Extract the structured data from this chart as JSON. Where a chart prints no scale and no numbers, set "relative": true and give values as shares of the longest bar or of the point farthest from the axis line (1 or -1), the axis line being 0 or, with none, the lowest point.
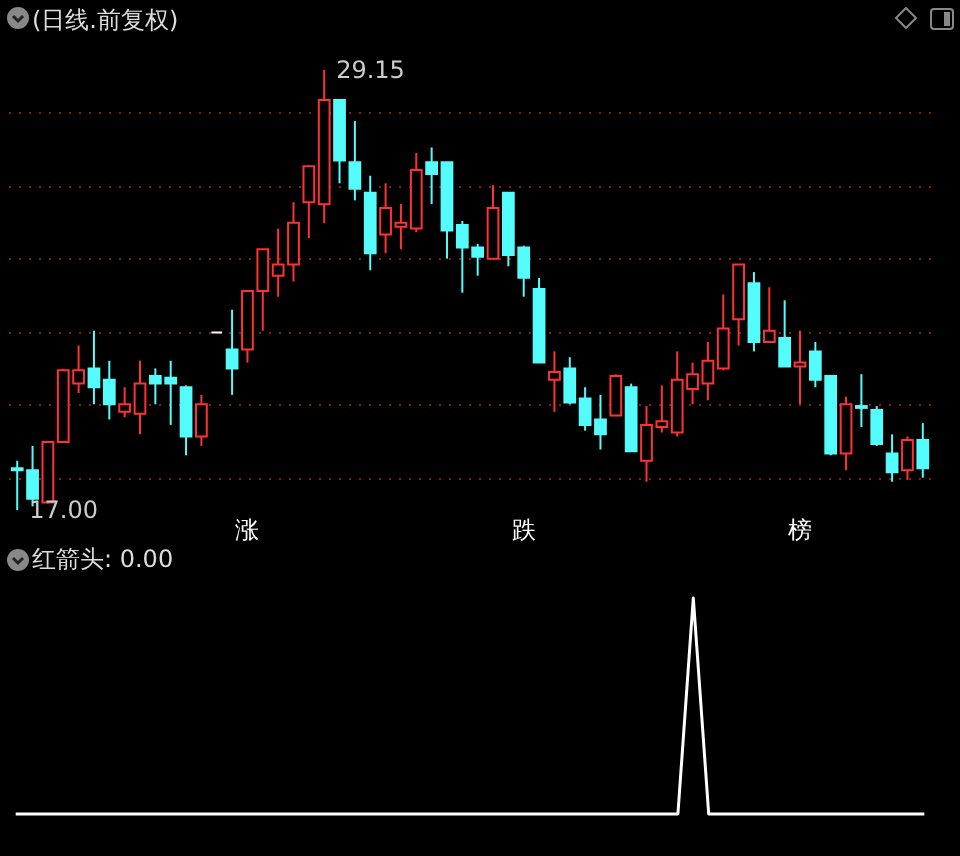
{
  "chart_data": [
    {
      "type": "candlestick",
      "title": "(日线.前复权)",
      "categories": [
        null,
        null,
        null,
        null,
        null,
        null,
        null,
        null,
        null,
        null,
        null,
        null,
        null,
        null,
        null,
        null,
        null,
        null,
        null,
        null,
        null,
        null,
        null,
        null,
        null,
        null,
        null,
        null,
        null,
        null,
        null,
        null,
        null,
        null,
        null,
        null,
        null,
        null,
        null,
        null,
        null,
        null,
        null,
        null,
        null,
        null,
        null,
        null,
        null,
        null,
        null,
        null,
        null,
        null,
        null,
        null,
        null,
        null,
        null,
        null
      ],
      "ohlc": [
        [
          18.15,
          18.36,
          17.0,
          18.1
        ],
        [
          18.1,
          18.77,
          17.1,
          17.31
        ],
        [
          17.21,
          18.9,
          17.18,
          18.88
        ],
        [
          18.88,
          20.9,
          18.85,
          20.86
        ],
        [
          20.49,
          21.54,
          20.23,
          20.86
        ],
        [
          20.91,
          21.95,
          19.92,
          20.39
        ],
        [
          20.6,
          21.12,
          19.5,
          19.92
        ],
        [
          19.71,
          20.39,
          19.56,
          19.92
        ],
        [
          19.66,
          21.12,
          19.09,
          20.49
        ],
        [
          20.7,
          20.91,
          19.92,
          20.49
        ],
        [
          20.65,
          21.12,
          19.35,
          20.49
        ],
        [
          20.39,
          20.44,
          18.51,
          19.03
        ],
        [
          19.03,
          20.18,
          18.77,
          19.92
        ],
        [
          21.9,
          21.9,
          21.9,
          21.9
        ],
        [
          21.43,
          22.53,
          20.18,
          20.91
        ],
        [
          21.43,
          23.05,
          21.07,
          23.05
        ],
        [
          23.05,
          24.2,
          21.95,
          24.2
        ],
        [
          23.47,
          24.77,
          22.89,
          23.78
        ],
        [
          23.78,
          25.5,
          23.31,
          24.93
        ],
        [
          25.5,
          26.49,
          24.51,
          26.49
        ],
        [
          25.44,
          29.15,
          24.92,
          28.32
        ],
        [
          28.32,
          28.32,
          26.02,
          26.65
        ],
        [
          26.6,
          27.74,
          25.55,
          25.87
        ],
        [
          25.76,
          26.23,
          23.62,
          24.09
        ],
        [
          24.61,
          26.02,
          24.09,
          25.34
        ],
        [
          24.82,
          25.45,
          24.2,
          24.93
        ],
        [
          24.77,
          26.86,
          24.67,
          26.39
        ],
        [
          26.6,
          27.01,
          25.45,
          26.28
        ],
        [
          26.6,
          26.6,
          23.94,
          24.72
        ],
        [
          24.87,
          24.98,
          23.0,
          24.25
        ],
        [
          24.25,
          24.35,
          23.47,
          23.99
        ],
        [
          23.94,
          25.97,
          23.94,
          25.34
        ],
        [
          25.76,
          25.76,
          23.73,
          24.04
        ],
        [
          24.25,
          24.3,
          22.89,
          23.41
        ],
        [
          23.1,
          23.41,
          21.07,
          21.07
        ],
        [
          20.6,
          21.38,
          19.71,
          20.81
        ],
        [
          20.91,
          21.22,
          19.92,
          19.97
        ],
        [
          20.08,
          20.39,
          19.19,
          19.35
        ],
        [
          19.5,
          20.18,
          18.67,
          19.09
        ],
        [
          19.61,
          20.75,
          19.61,
          20.7
        ],
        [
          20.39,
          20.49,
          18.62,
          18.62
        ],
        [
          18.36,
          19.87,
          17.78,
          19.35
        ],
        [
          19.29,
          20.44,
          19.14,
          19.45
        ],
        [
          19.14,
          21.38,
          19.03,
          20.6
        ],
        [
          20.34,
          21.07,
          19.92,
          20.75
        ],
        [
          20.49,
          21.64,
          20.03,
          21.12
        ],
        [
          20.91,
          22.95,
          20.86,
          22.01
        ],
        [
          22.27,
          23.78,
          21.54,
          23.78
        ],
        [
          23.26,
          23.57,
          21.38,
          21.64
        ],
        [
          21.64,
          23.15,
          21.64,
          21.95
        ],
        [
          21.75,
          22.79,
          20.96,
          20.96
        ],
        [
          20.96,
          21.95,
          19.92,
          21.07
        ],
        [
          21.38,
          21.64,
          20.39,
          20.6
        ],
        [
          20.7,
          20.7,
          18.51,
          18.56
        ],
        [
          18.56,
          20.13,
          18.1,
          19.92
        ],
        [
          19.87,
          20.75,
          19.29,
          19.82
        ],
        [
          19.76,
          19.87,
          18.77,
          18.82
        ],
        [
          18.56,
          19.09,
          17.78,
          18.04
        ],
        [
          18.1,
          19.03,
          17.83,
          18.93
        ],
        [
          18.93,
          19.4,
          17.89,
          18.15
        ]
      ],
      "colors": [
        "#54fcfc",
        "#54fcfc",
        "#ff3232",
        "#ff3232",
        "#ff3232",
        "#54fcfc",
        "#54fcfc",
        "#ff3232",
        "#ff3232",
        "#54fcfc",
        "#54fcfc",
        "#54fcfc",
        "#ff3232",
        "#ffffff",
        "#54fcfc",
        "#ff3232",
        "#ff3232",
        "#ff3232",
        "#ff3232",
        "#ff3232",
        "#ff3232",
        "#54fcfc",
        "#54fcfc",
        "#54fcfc",
        "#ff3232",
        "#ff3232",
        "#ff3232",
        "#54fcfc",
        "#54fcfc",
        "#54fcfc",
        "#54fcfc",
        "#ff3232",
        "#54fcfc",
        "#54fcfc",
        "#54fcfc",
        "#ff3232",
        "#54fcfc",
        "#54fcfc",
        "#54fcfc",
        "#ff3232",
        "#54fcfc",
        "#ff3232",
        "#ff3232",
        "#ff3232",
        "#ff3232",
        "#ff3232",
        "#ff3232",
        "#ff3232",
        "#54fcfc",
        "#ff3232",
        "#54fcfc",
        "#ff3232",
        "#54fcfc",
        "#54fcfc",
        "#ff3232",
        "#54fcfc",
        "#54fcfc",
        "#54fcfc",
        "#ff3232",
        "#54fcfc"
      ],
      "yticks": [
        {
          "value": 17.89,
          "label": null
        },
        {
          "value": 19.92,
          "label": null
        },
        {
          "value": 21.9,
          "label": null
        },
        {
          "value": 23.94,
          "label": null
        },
        {
          "value": 25.97,
          "label": null
        },
        {
          "value": 28.0,
          "label": null
        }
      ],
      "grid": true,
      "tick_labels": false,
      "annotations": [
        "29.15",
        "17.00",
        "涨",
        "跌",
        "榜"
      ]
    },
    {
      "type": "line",
      "title": "红箭头: 0.00",
      "relative": true,
      "categories": [
        null,
        null,
        null,
        null,
        null,
        null,
        null,
        null,
        null,
        null,
        null,
        null,
        null,
        null,
        null,
        null,
        null,
        null,
        null,
        null,
        null,
        null,
        null,
        null,
        null,
        null,
        null,
        null,
        null,
        null,
        null,
        null,
        null,
        null,
        null,
        null,
        null,
        null,
        null,
        null,
        null,
        null,
        null,
        null,
        null,
        null,
        null,
        null,
        null,
        null,
        null,
        null,
        null,
        null,
        null,
        null,
        null,
        null,
        null,
        null
      ],
      "series": [
        {
          "color": "#ffffff",
          "values": [
            0,
            0,
            0,
            0,
            0,
            0,
            0,
            0,
            0,
            0,
            0,
            0,
            0,
            0,
            0,
            0,
            0,
            0,
            0,
            0,
            0,
            0,
            0,
            0,
            0,
            0,
            0,
            0,
            0,
            0,
            0,
            0,
            0,
            0,
            0,
            0,
            0,
            0,
            0,
            0,
            0,
            0,
            0,
            0,
            1,
            0,
            0,
            0,
            0,
            0,
            0,
            0,
            0,
            0,
            0,
            0,
            0,
            0,
            0,
            0
          ]
        }
      ]
    }
  ]
}
